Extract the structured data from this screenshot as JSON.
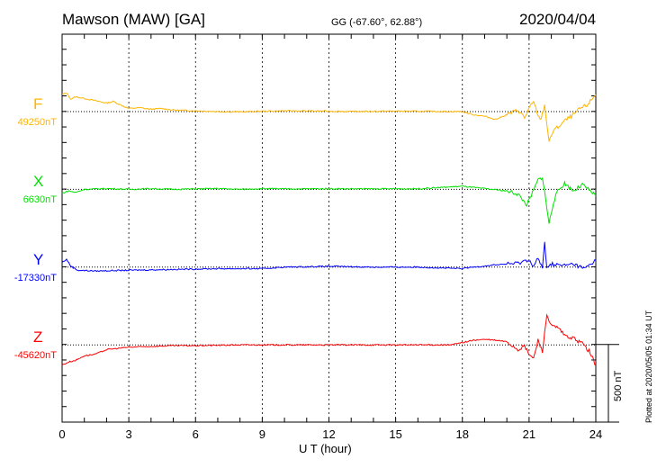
{
  "chart_data": {
    "type": "line",
    "title": "Mawson (MAW)  [GA]",
    "coords": "GG (-67.60°,  62.88°)",
    "date": "2020/04/04",
    "xlabel": "U T (hour)",
    "xlim": [
      0,
      24
    ],
    "xticks": [
      "0",
      "3",
      "6",
      "9",
      "12",
      "15",
      "18",
      "21",
      "24"
    ],
    "scale_label": "500 nT",
    "scale_nT": 500,
    "footer": "Plotted at 2020/05/05 01:34 UT",
    "series": [
      {
        "name": "F",
        "baseline_label": "49250nT",
        "color": "#ffb400",
        "points": [
          [
            0,
            110
          ],
          [
            0.2,
            120
          ],
          [
            0.4,
            80
          ],
          [
            0.6,
            95
          ],
          [
            1,
            85
          ],
          [
            1.5,
            70
          ],
          [
            2,
            55
          ],
          [
            2.3,
            65
          ],
          [
            2.6,
            45
          ],
          [
            3,
            20
          ],
          [
            3.5,
            25
          ],
          [
            4,
            15
          ],
          [
            4.5,
            20
          ],
          [
            5,
            10
          ],
          [
            6,
            5
          ],
          [
            7,
            0
          ],
          [
            8,
            -2
          ],
          [
            9,
            2
          ],
          [
            10,
            5
          ],
          [
            11,
            4
          ],
          [
            12,
            3
          ],
          [
            13,
            0
          ],
          [
            14,
            2
          ],
          [
            15,
            3
          ],
          [
            16,
            2
          ],
          [
            17,
            1
          ],
          [
            18,
            0
          ],
          [
            18.5,
            -20
          ],
          [
            19,
            -30
          ],
          [
            19.5,
            -50
          ],
          [
            20,
            -20
          ],
          [
            20.5,
            10
          ],
          [
            20.8,
            -40
          ],
          [
            21,
            20
          ],
          [
            21.2,
            60
          ],
          [
            21.5,
            -60
          ],
          [
            21.7,
            40
          ],
          [
            21.9,
            -195
          ],
          [
            22.1,
            -120
          ],
          [
            22.3,
            -100
          ],
          [
            22.6,
            -60
          ],
          [
            23,
            -20
          ],
          [
            23.3,
            20
          ],
          [
            23.6,
            40
          ],
          [
            24,
            110
          ]
        ]
      },
      {
        "name": "X",
        "baseline_label": "6630nT",
        "color": "#00e000",
        "points": [
          [
            0,
            -25
          ],
          [
            0.3,
            -10
          ],
          [
            0.6,
            -20
          ],
          [
            1,
            0
          ],
          [
            2,
            5
          ],
          [
            3,
            0
          ],
          [
            4,
            5
          ],
          [
            5,
            0
          ],
          [
            6,
            3
          ],
          [
            7,
            5
          ],
          [
            8,
            0
          ],
          [
            9,
            5
          ],
          [
            10,
            3
          ],
          [
            12,
            4
          ],
          [
            14,
            3
          ],
          [
            16,
            4
          ],
          [
            18,
            20
          ],
          [
            19,
            5
          ],
          [
            20,
            -10
          ],
          [
            20.5,
            -30
          ],
          [
            20.9,
            -100
          ],
          [
            21.1,
            -40
          ],
          [
            21.4,
            60
          ],
          [
            21.6,
            80
          ],
          [
            21.8,
            -120
          ],
          [
            21.9,
            -220
          ],
          [
            22.1,
            -80
          ],
          [
            22.3,
            -10
          ],
          [
            22.6,
            40
          ],
          [
            23,
            -10
          ],
          [
            23.4,
            30
          ],
          [
            24,
            -40
          ]
        ]
      },
      {
        "name": "Y",
        "baseline_label": "-17330nT",
        "color": "#0000ff",
        "points": [
          [
            0,
            30
          ],
          [
            0.2,
            50
          ],
          [
            0.4,
            5
          ],
          [
            0.7,
            -20
          ],
          [
            1.5,
            -25
          ],
          [
            3,
            -20
          ],
          [
            5,
            -15
          ],
          [
            7,
            -10
          ],
          [
            9,
            -10
          ],
          [
            10,
            0
          ],
          [
            12,
            5
          ],
          [
            14,
            0
          ],
          [
            16,
            0
          ],
          [
            18,
            -10
          ],
          [
            18.5,
            0
          ],
          [
            19.5,
            15
          ],
          [
            20.5,
            25
          ],
          [
            21,
            50
          ],
          [
            21.2,
            0
          ],
          [
            21.4,
            60
          ],
          [
            21.6,
            -10
          ],
          [
            21.7,
            155
          ],
          [
            21.8,
            0
          ],
          [
            22,
            20
          ],
          [
            22.5,
            10
          ],
          [
            23,
            20
          ],
          [
            23.5,
            -10
          ],
          [
            24,
            45
          ]
        ]
      },
      {
        "name": "Z",
        "baseline_label": "-45620nT",
        "color": "#ff0000",
        "points": [
          [
            0,
            -130
          ],
          [
            0.3,
            -110
          ],
          [
            0.6,
            -100
          ],
          [
            1,
            -70
          ],
          [
            1.5,
            -60
          ],
          [
            2,
            -30
          ],
          [
            3,
            -15
          ],
          [
            4,
            -10
          ],
          [
            5,
            -5
          ],
          [
            6,
            -5
          ],
          [
            8,
            0
          ],
          [
            10,
            0
          ],
          [
            12,
            0
          ],
          [
            14,
            0
          ],
          [
            16,
            0
          ],
          [
            17.5,
            0
          ],
          [
            18,
            15
          ],
          [
            18.5,
            30
          ],
          [
            19,
            35
          ],
          [
            19.5,
            30
          ],
          [
            20,
            20
          ],
          [
            20.5,
            -30
          ],
          [
            20.8,
            -10
          ],
          [
            21,
            -60
          ],
          [
            21.2,
            -90
          ],
          [
            21.4,
            30
          ],
          [
            21.6,
            -40
          ],
          [
            21.8,
            195
          ],
          [
            22,
            120
          ],
          [
            22.3,
            110
          ],
          [
            22.6,
            60
          ],
          [
            23,
            40
          ],
          [
            23.4,
            10
          ],
          [
            23.7,
            -40
          ],
          [
            24,
            -130
          ]
        ]
      }
    ]
  }
}
